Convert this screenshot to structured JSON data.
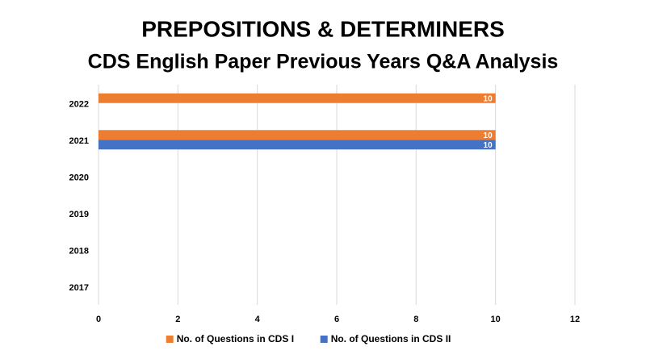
{
  "chart_data": {
    "type": "hbar",
    "title": "PREPOSITIONS & DETERMINERS",
    "subtitle": "CDS English Paper Previous Years Q&A Analysis",
    "categories": [
      "2022",
      "2021",
      "2020",
      "2019",
      "2018",
      "2017"
    ],
    "series": [
      {
        "name": "No. of Questions in CDS I",
        "color": "#ed7d31",
        "values": [
          10,
          10,
          null,
          null,
          null,
          null
        ]
      },
      {
        "name": "No. of Questions in CDS II",
        "color": "#4472c4",
        "values": [
          null,
          10,
          null,
          null,
          null,
          null
        ]
      }
    ],
    "xlim": [
      0,
      12
    ],
    "xticks": [
      0,
      2,
      4,
      6,
      8,
      10,
      12
    ],
    "grid": true,
    "legend": "bottom"
  }
}
